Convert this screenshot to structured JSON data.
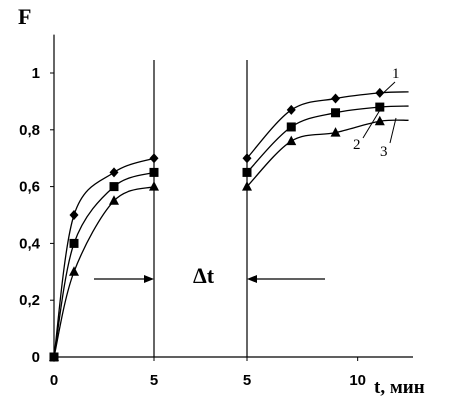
{
  "chart_data": {
    "type": "line",
    "ylabel": "F",
    "xlabel": "t, мин",
    "ylim": [
      0,
      1.1
    ],
    "y_ticks": [
      "0",
      "0,2",
      "0,4",
      "0,6",
      "0,8",
      "1"
    ],
    "y_tick_values": [
      0,
      0.2,
      0.4,
      0.6,
      0.8,
      1.0
    ],
    "segments": [
      {
        "xlim": [
          0,
          5
        ],
        "x_ticks": [
          "0",
          "5"
        ],
        "x_tick_values": [
          0,
          5
        ]
      },
      {
        "xlim": [
          5,
          12.5
        ],
        "x_ticks": [
          "5",
          "10"
        ],
        "x_tick_values": [
          5,
          10
        ]
      }
    ],
    "annotation": "Δt",
    "grid": false,
    "series": [
      {
        "name": "1",
        "marker": "diamond",
        "segments": [
          {
            "x": [
              0,
              1,
              3,
              5
            ],
            "y": [
              0,
              0.5,
              0.65,
              0.7
            ]
          },
          {
            "x": [
              5,
              7,
              9,
              11
            ],
            "y": [
              0.7,
              0.87,
              0.91,
              0.93
            ]
          }
        ]
      },
      {
        "name": "2",
        "marker": "square",
        "segments": [
          {
            "x": [
              0,
              1,
              3,
              5
            ],
            "y": [
              0,
              0.4,
              0.6,
              0.65
            ]
          },
          {
            "x": [
              5,
              7,
              9,
              11
            ],
            "y": [
              0.65,
              0.81,
              0.86,
              0.88
            ]
          }
        ]
      },
      {
        "name": "3",
        "marker": "triangle",
        "segments": [
          {
            "x": [
              0,
              1,
              3,
              5
            ],
            "y": [
              0,
              0.3,
              0.55,
              0.6
            ]
          },
          {
            "x": [
              5,
              7,
              9,
              11
            ],
            "y": [
              0.6,
              0.76,
              0.79,
              0.83
            ]
          }
        ]
      }
    ]
  }
}
